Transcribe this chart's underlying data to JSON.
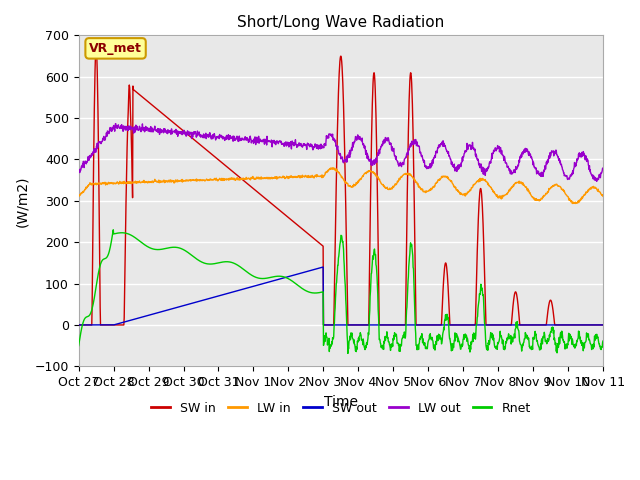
{
  "title": "Short/Long Wave Radiation",
  "xlabel": "Time",
  "ylabel": "(W/m2)",
  "ylim": [
    -100,
    700
  ],
  "yticks": [
    -100,
    0,
    100,
    200,
    300,
    400,
    500,
    600,
    700
  ],
  "xtick_labels": [
    "Oct 27",
    "Oct 28",
    "Oct 29",
    "Oct 30",
    "Oct 31",
    "Nov 1",
    "Nov 2",
    "Nov 3",
    "Nov 4",
    "Nov 5",
    "Nov 6",
    "Nov 7",
    "Nov 8",
    "Nov 9",
    "Nov 10",
    "Nov 11"
  ],
  "n_days": 15,
  "colors": {
    "SW_in": "#cc0000",
    "LW_in": "#ff9900",
    "SW_out": "#0000cc",
    "LW_out": "#9900cc",
    "Rnet": "#00cc00"
  },
  "annotation_text": "VR_met",
  "annotation_bg": "#ffff99",
  "annotation_border": "#cc9900",
  "background_color": "#e8e8e8",
  "grid_color": "#ffffff"
}
